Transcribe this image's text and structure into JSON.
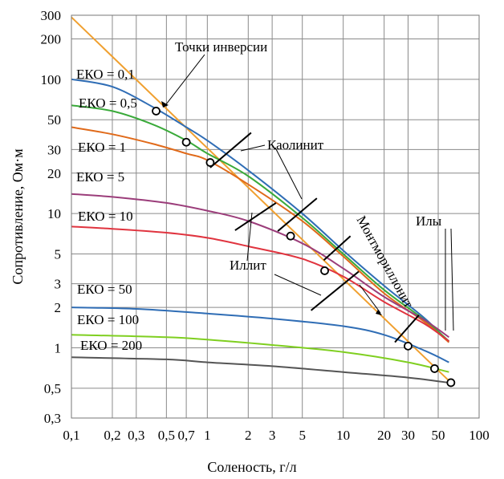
{
  "chart_data": {
    "type": "line",
    "xscale": "log",
    "yscale": "log",
    "xlim": [
      0.1,
      100
    ],
    "ylim": [
      0.3,
      300
    ],
    "xlabel": "Соленость, г/л",
    "ylabel": "Сопротивление, Ом·м",
    "grid": true,
    "x_ticks": [
      {
        "v": 0.1,
        "t": "0,1"
      },
      {
        "v": 0.2,
        "t": "0,2"
      },
      {
        "v": 0.3,
        "t": "0,3"
      },
      {
        "v": 0.5,
        "t": "0,5"
      },
      {
        "v": 0.7,
        "t": "0,7"
      },
      {
        "v": 1,
        "t": "1"
      },
      {
        "v": 2,
        "t": "2"
      },
      {
        "v": 3,
        "t": "3"
      },
      {
        "v": 5,
        "t": "5"
      },
      {
        "v": 10,
        "t": "10"
      },
      {
        "v": 20,
        "t": "20"
      },
      {
        "v": 30,
        "t": "30"
      },
      {
        "v": 50,
        "t": "50"
      },
      {
        "v": 100,
        "t": "100"
      }
    ],
    "y_ticks": [
      {
        "v": 0.3,
        "t": "0,3"
      },
      {
        "v": 0.5,
        "t": "0,5"
      },
      {
        "v": 1,
        "t": "1"
      },
      {
        "v": 2,
        "t": "2"
      },
      {
        "v": 3,
        "t": "3"
      },
      {
        "v": 5,
        "t": "5"
      },
      {
        "v": 10,
        "t": "10"
      },
      {
        "v": 20,
        "t": "20"
      },
      {
        "v": 30,
        "t": "30"
      },
      {
        "v": 50,
        "t": "50"
      },
      {
        "v": 100,
        "t": "100"
      },
      {
        "v": 200,
        "t": "200"
      },
      {
        "v": 300,
        "t": "300"
      }
    ],
    "series": [
      {
        "name": "ЕКО = 0,1",
        "color": "#2f6db5",
        "points": [
          [
            0.1,
            100
          ],
          [
            0.2,
            88
          ],
          [
            0.4,
            62
          ],
          [
            0.7,
            44
          ],
          [
            1,
            35
          ],
          [
            2,
            21
          ],
          [
            5,
            10
          ],
          [
            10,
            5.3
          ],
          [
            20,
            2.9
          ],
          [
            40,
            1.65
          ],
          [
            60,
            1.1
          ]
        ]
      },
      {
        "name": "ЕКО = 0,5",
        "color": "#3aaa3a",
        "points": [
          [
            0.1,
            64
          ],
          [
            0.2,
            58
          ],
          [
            0.4,
            46
          ],
          [
            0.7,
            35
          ],
          [
            1,
            28
          ],
          [
            2,
            19
          ],
          [
            5,
            9.3
          ],
          [
            10,
            5
          ],
          [
            20,
            2.7
          ],
          [
            40,
            1.6
          ],
          [
            60,
            1.12
          ]
        ]
      },
      {
        "name": "ЕКО = 1",
        "color": "#e06a1a",
        "points": [
          [
            0.1,
            44
          ],
          [
            0.2,
            39
          ],
          [
            0.4,
            33
          ],
          [
            0.7,
            28
          ],
          [
            1,
            25
          ],
          [
            2,
            16.5
          ],
          [
            5,
            8.8
          ],
          [
            10,
            4.8
          ],
          [
            20,
            2.55
          ],
          [
            40,
            1.55
          ],
          [
            60,
            1.1
          ]
        ]
      },
      {
        "name": "ЕКО = 5",
        "color": "#9b3d7a",
        "points": [
          [
            0.1,
            14
          ],
          [
            0.2,
            13.3
          ],
          [
            0.5,
            12
          ],
          [
            1,
            10.5
          ],
          [
            2,
            8.8
          ],
          [
            5,
            6
          ],
          [
            10,
            3.9
          ],
          [
            20,
            2.4
          ],
          [
            40,
            1.6
          ],
          [
            60,
            1.2
          ]
        ]
      },
      {
        "name": "ЕКО = 10",
        "color": "#e0343f",
        "points": [
          [
            0.1,
            8
          ],
          [
            0.2,
            7.7
          ],
          [
            0.5,
            7.2
          ],
          [
            1,
            6.6
          ],
          [
            2,
            5.7
          ],
          [
            5,
            4.6
          ],
          [
            10,
            3.4
          ],
          [
            20,
            2.2
          ],
          [
            40,
            1.5
          ],
          [
            60,
            1.12
          ]
        ]
      },
      {
        "name": "ЕКО = 50",
        "color": "#2f6db5",
        "points": [
          [
            0.1,
            2
          ],
          [
            0.3,
            1.95
          ],
          [
            1,
            1.8
          ],
          [
            3,
            1.65
          ],
          [
            10,
            1.45
          ],
          [
            20,
            1.25
          ],
          [
            40,
            0.95
          ],
          [
            60,
            0.78
          ]
        ]
      },
      {
        "name": "ЕКО = 100",
        "color": "#7fcf20",
        "points": [
          [
            0.1,
            1.25
          ],
          [
            0.5,
            1.2
          ],
          [
            1,
            1.15
          ],
          [
            3,
            1.05
          ],
          [
            10,
            0.93
          ],
          [
            30,
            0.78
          ],
          [
            60,
            0.66
          ]
        ]
      },
      {
        "name": "ЕКО = 200",
        "color": "#555555",
        "points": [
          [
            0.1,
            0.85
          ],
          [
            0.5,
            0.82
          ],
          [
            1,
            0.78
          ],
          [
            3,
            0.73
          ],
          [
            10,
            0.66
          ],
          [
            30,
            0.6
          ],
          [
            60,
            0.55
          ]
        ]
      }
    ],
    "inversion_line": {
      "color": "#f0a030",
      "points": [
        [
          0.1,
          290
        ],
        [
          62,
          0.55
        ]
      ]
    },
    "inversion_points": [
      [
        0.42,
        58
      ],
      [
        0.7,
        34
      ],
      [
        1.05,
        24
      ],
      [
        4.1,
        6.8
      ],
      [
        7.3,
        3.75
      ],
      [
        30,
        1.03
      ],
      [
        47,
        0.7
      ],
      [
        62,
        0.55
      ]
    ],
    "cut_marks": [
      {
        "a": [
          1.05,
          22
        ],
        "b": [
          2.1,
          40
        ]
      },
      {
        "a": [
          1.6,
          7.5
        ],
        "b": [
          3.2,
          12
        ]
      },
      {
        "a": [
          3.3,
          7.4
        ],
        "b": [
          6.4,
          13
        ]
      },
      {
        "a": [
          7.2,
          4.5
        ],
        "b": [
          11.3,
          6.8
        ]
      },
      {
        "a": [
          5.8,
          1.9
        ],
        "b": [
          13,
          3.7
        ]
      },
      {
        "a": [
          24,
          1.1
        ],
        "b": [
          36,
          1.75
        ]
      }
    ],
    "annotations": {
      "inversion": "Точки инверсии",
      "kaolinite": "Каолинит",
      "illite": "Иллит",
      "montmorillonite": "Монтмориллонит",
      "silts": "Илы"
    }
  }
}
